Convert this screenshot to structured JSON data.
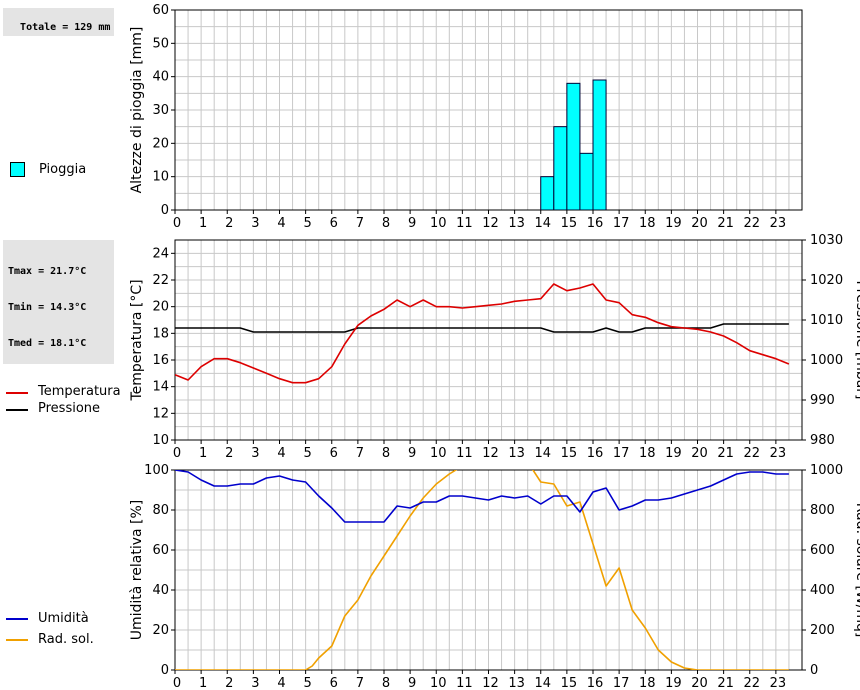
{
  "summary": {
    "rain_total": "Totale = 129 mm",
    "temp_lines": [
      "Tmax = 21.7°C",
      "Tmin = 14.3°C",
      "Tmed = 18.1°C"
    ]
  },
  "colors": {
    "rain": "#00ffff",
    "temperature": "#dd0000",
    "pressure": "#000000",
    "humidity": "#0000cc",
    "radiation": "#f0a000",
    "grid": "#c8c8c8"
  },
  "chart_data": [
    {
      "type": "bar",
      "ylabel": "Altezze di pioggia [mm]",
      "xlim": [
        0,
        24
      ],
      "ylim": [
        0,
        60
      ],
      "yticks": [
        0,
        10,
        20,
        30,
        40,
        50,
        60
      ],
      "xticks": [
        0,
        1,
        2,
        3,
        4,
        5,
        6,
        7,
        8,
        9,
        10,
        11,
        12,
        13,
        14,
        15,
        16,
        17,
        18,
        19,
        20,
        21,
        22,
        23
      ],
      "bar_width": 0.5,
      "series": [
        {
          "name": "Pioggia",
          "bars": [
            {
              "start": 14.0,
              "value": 10
            },
            {
              "start": 14.5,
              "value": 25
            },
            {
              "start": 15.0,
              "value": 38
            },
            {
              "start": 15.5,
              "value": 17
            },
            {
              "start": 16.0,
              "value": 39
            }
          ]
        }
      ]
    },
    {
      "type": "line",
      "ylabel": "Temperatura [°C]",
      "y2label": "Pressione [mbar]",
      "xlim": [
        0,
        24
      ],
      "ylim": [
        10,
        25
      ],
      "y2lim": [
        980,
        1030
      ],
      "yticks": [
        10,
        12,
        14,
        16,
        18,
        20,
        22,
        24
      ],
      "y2ticks": [
        980,
        990,
        1000,
        1010,
        1020,
        1030
      ],
      "xticks": [
        0,
        1,
        2,
        3,
        4,
        5,
        6,
        7,
        8,
        9,
        10,
        11,
        12,
        13,
        14,
        15,
        16,
        17,
        18,
        19,
        20,
        21,
        22,
        23
      ],
      "series": [
        {
          "name": "Temperatura",
          "axis": "left",
          "x": [
            0,
            0.5,
            1,
            1.5,
            2,
            2.5,
            3,
            3.5,
            4,
            4.5,
            5,
            5.5,
            6,
            6.5,
            7,
            7.5,
            8,
            8.5,
            9,
            9.5,
            10,
            10.5,
            11,
            11.5,
            12,
            12.5,
            13,
            13.5,
            14,
            14.5,
            15,
            15.5,
            16,
            16.5,
            17,
            17.5,
            18,
            18.5,
            19,
            19.5,
            20,
            20.5,
            21,
            21.5,
            22,
            22.5,
            23,
            23.5
          ],
          "y": [
            14.9,
            14.5,
            15.5,
            16.1,
            16.1,
            15.8,
            15.4,
            15.0,
            14.6,
            14.3,
            14.3,
            14.6,
            15.5,
            17.2,
            18.6,
            19.3,
            19.8,
            20.5,
            20.0,
            20.5,
            20.0,
            20.0,
            19.9,
            20.0,
            20.1,
            20.2,
            20.4,
            20.5,
            20.6,
            21.7,
            21.2,
            21.4,
            21.7,
            20.5,
            20.3,
            19.4,
            19.2,
            18.8,
            18.5,
            18.4,
            18.3,
            18.1,
            17.8,
            17.3,
            16.7,
            16.4,
            16.1,
            15.7
          ]
        },
        {
          "name": "Pressione",
          "axis": "right",
          "x": [
            0,
            2.5,
            3,
            6.5,
            7,
            14,
            14.5,
            16,
            16.5,
            17,
            17.5,
            18,
            20.5,
            21,
            23.5
          ],
          "y": [
            1008,
            1008,
            1007,
            1007,
            1008,
            1008,
            1007,
            1007,
            1008,
            1007,
            1007,
            1008,
            1008,
            1009,
            1009
          ]
        }
      ]
    },
    {
      "type": "line",
      "ylabel": "Umidità relativa [%]",
      "y2label": "Rad. solare [W/mq]",
      "xlim": [
        0,
        24
      ],
      "ylim": [
        0,
        100
      ],
      "y2lim": [
        0,
        1000
      ],
      "yticks": [
        0,
        20,
        40,
        60,
        80,
        100
      ],
      "y2ticks": [
        0,
        200,
        400,
        600,
        800,
        1000
      ],
      "xticks": [
        0,
        1,
        2,
        3,
        4,
        5,
        6,
        7,
        8,
        9,
        10,
        11,
        12,
        13,
        14,
        15,
        16,
        17,
        18,
        19,
        20,
        21,
        22,
        23
      ],
      "series": [
        {
          "name": "Umidità",
          "axis": "left",
          "x": [
            0,
            0.5,
            1,
            1.5,
            2,
            2.5,
            3,
            3.5,
            4,
            4.5,
            5,
            5.5,
            6,
            6.5,
            7,
            7.5,
            8,
            8.5,
            9,
            9.5,
            10,
            10.5,
            11,
            11.5,
            12,
            12.5,
            13,
            13.5,
            14,
            14.5,
            15,
            15.5,
            16,
            16.5,
            17,
            17.5,
            18,
            18.5,
            19,
            19.5,
            20,
            20.5,
            21,
            21.5,
            22,
            22.5,
            23,
            23.5
          ],
          "y": [
            100,
            99,
            95,
            92,
            92,
            93,
            93,
            96,
            97,
            95,
            94,
            87,
            81,
            74,
            74,
            74,
            74,
            82,
            81,
            84,
            84,
            87,
            87,
            86,
            85,
            87,
            86,
            87,
            83,
            87,
            87,
            79,
            89,
            91,
            80,
            82,
            85,
            85,
            86,
            88,
            90,
            92,
            95,
            98,
            99,
            99,
            98,
            98
          ]
        },
        {
          "name": "Rad. sol.",
          "axis": "right",
          "x": [
            0,
            0.5,
            1,
            1.5,
            2,
            2.5,
            3,
            3.5,
            4,
            4.5,
            5,
            5.25,
            5.5,
            6,
            6.5,
            7,
            7.5,
            8,
            8.5,
            9,
            9.5,
            10,
            10.5,
            11,
            11.5,
            12,
            12.5,
            13,
            13.5,
            14,
            14.5,
            15,
            15.5,
            16,
            16.5,
            17,
            17.5,
            18,
            18.5,
            19,
            19.5,
            20,
            20.5,
            21,
            21.5,
            22,
            22.5,
            23,
            23.5
          ],
          "y": [
            0,
            0,
            0,
            0,
            0,
            0,
            0,
            0,
            0,
            0,
            0,
            20,
            60,
            120,
            270,
            350,
            470,
            570,
            670,
            770,
            860,
            930,
            980,
            1020,
            1050,
            1060,
            1060,
            1060,
            1040,
            940,
            930,
            820,
            840,
            630,
            420,
            510,
            300,
            210,
            100,
            40,
            10,
            0,
            0,
            0,
            0,
            0,
            0,
            0,
            0
          ]
        }
      ]
    }
  ]
}
